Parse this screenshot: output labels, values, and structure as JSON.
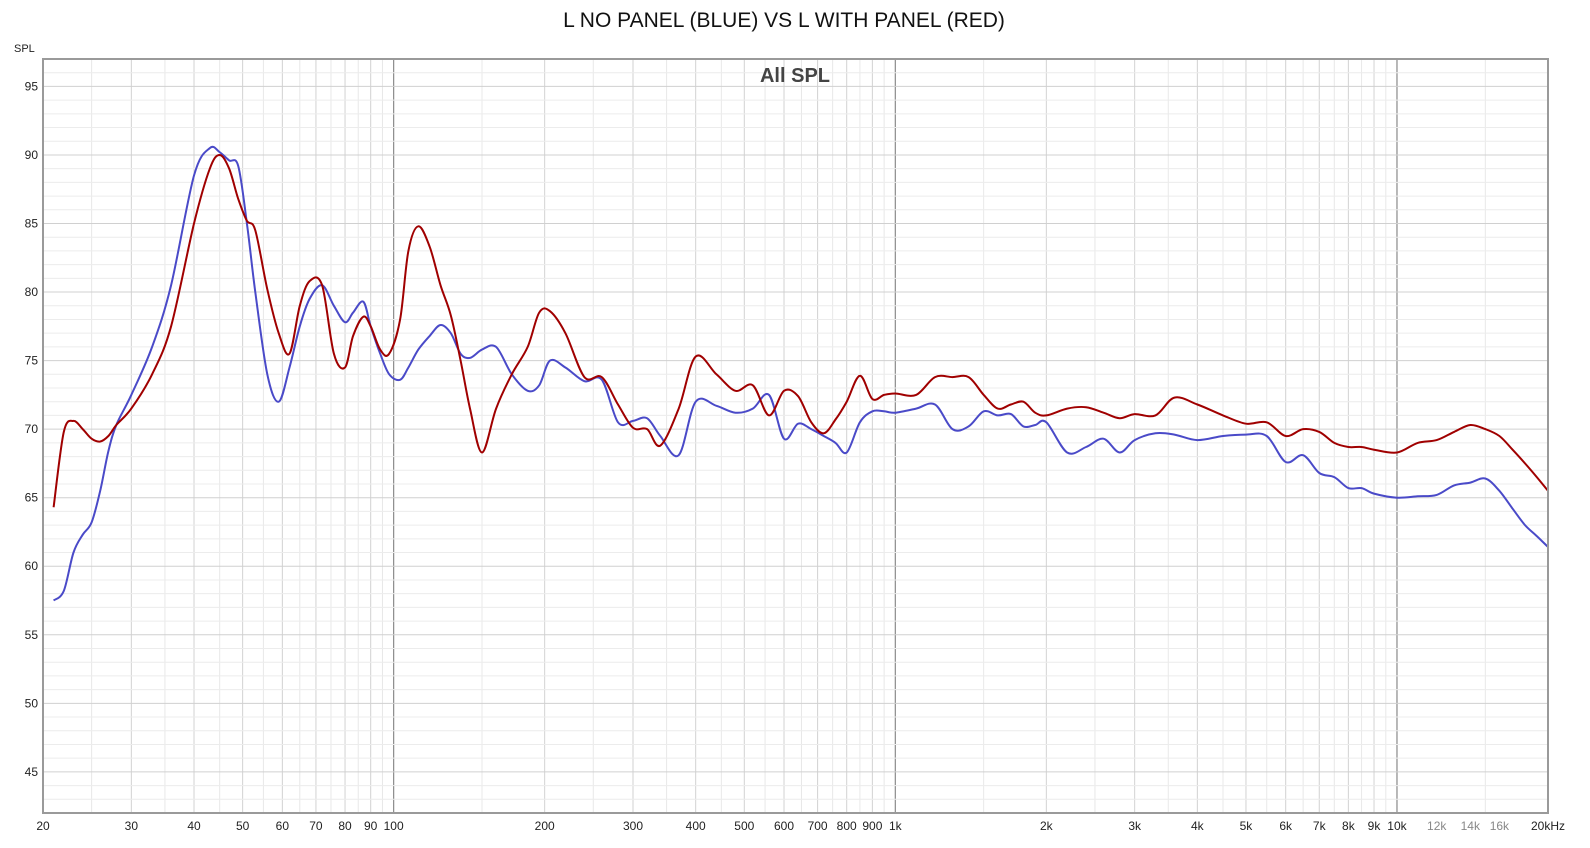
{
  "chart_data": {
    "type": "line",
    "title": "L NO PANEL (BLUE) VS L WITH PANEL (RED)",
    "subtitle": "All SPL",
    "ylabel": "SPL",
    "xlabel": "",
    "xscale": "log",
    "xlim": [
      20,
      20000
    ],
    "ylim": [
      42,
      97
    ],
    "grid": true,
    "x_ticks": [
      {
        "v": 20,
        "label": "20"
      },
      {
        "v": 30,
        "label": "30"
      },
      {
        "v": 40,
        "label": "40"
      },
      {
        "v": 50,
        "label": "50"
      },
      {
        "v": 60,
        "label": "60"
      },
      {
        "v": 70,
        "label": "70"
      },
      {
        "v": 80,
        "label": "80"
      },
      {
        "v": 90,
        "label": "90"
      },
      {
        "v": 100,
        "label": "100"
      },
      {
        "v": 200,
        "label": "200"
      },
      {
        "v": 300,
        "label": "300"
      },
      {
        "v": 400,
        "label": "400"
      },
      {
        "v": 500,
        "label": "500"
      },
      {
        "v": 600,
        "label": "600"
      },
      {
        "v": 700,
        "label": "700"
      },
      {
        "v": 800,
        "label": "800"
      },
      {
        "v": 900,
        "label": "900"
      },
      {
        "v": 1000,
        "label": "1k"
      },
      {
        "v": 2000,
        "label": "2k"
      },
      {
        "v": 3000,
        "label": "3k"
      },
      {
        "v": 4000,
        "label": "4k"
      },
      {
        "v": 5000,
        "label": "5k"
      },
      {
        "v": 6000,
        "label": "6k"
      },
      {
        "v": 7000,
        "label": "7k"
      },
      {
        "v": 8000,
        "label": "8k"
      },
      {
        "v": 9000,
        "label": "9k"
      },
      {
        "v": 10000,
        "label": "10k"
      },
      {
        "v": 12000,
        "label": "12k",
        "light": true
      },
      {
        "v": 14000,
        "label": "14k",
        "light": true
      },
      {
        "v": 16000,
        "label": "16k",
        "light": true
      },
      {
        "v": 20000,
        "label": "20kHz"
      }
    ],
    "y_ticks": [
      45,
      50,
      55,
      60,
      65,
      70,
      75,
      80,
      85,
      90,
      95
    ],
    "colors": {
      "blue": "#4a4ac8",
      "red": "#a00000"
    },
    "series": [
      {
        "color": "#4a4ac8",
        "x": [
          21,
          22,
          23,
          24,
          25,
          26,
          27,
          28,
          30,
          33,
          36,
          40,
          43,
          45,
          47,
          49,
          51,
          53,
          56,
          59,
          62,
          65,
          68,
          72,
          76,
          80,
          83,
          87,
          90,
          94,
          98,
          103,
          107,
          112,
          118,
          124,
          130,
          136,
          142,
          150,
          160,
          172,
          185,
          195,
          205,
          220,
          240,
          260,
          280,
          300,
          320,
          340,
          370,
          400,
          440,
          480,
          520,
          560,
          600,
          640,
          680,
          720,
          760,
          800,
          850,
          900,
          950,
          1000,
          1100,
          1200,
          1300,
          1400,
          1500,
          1600,
          1700,
          1800,
          1900,
          2000,
          2200,
          2400,
          2600,
          2800,
          3000,
          3300,
          3600,
          4000,
          4500,
          5000,
          5500,
          6000,
          6500,
          7000,
          7500,
          8000,
          8500,
          9000,
          10000,
          11000,
          12000,
          13000,
          14000,
          15000,
          16000,
          17000,
          18000,
          19000,
          20000
        ],
        "y": [
          57.5,
          58.2,
          61.0,
          62.3,
          63.2,
          65.5,
          68.4,
          70.3,
          72.5,
          76.0,
          80.5,
          88.5,
          90.5,
          90.2,
          89.6,
          89.2,
          85.0,
          80.0,
          74.0,
          72.0,
          74.5,
          77.5,
          79.5,
          80.5,
          79.0,
          77.8,
          78.5,
          79.3,
          77.5,
          75.5,
          74.0,
          73.6,
          74.5,
          75.8,
          76.8,
          77.6,
          77.0,
          75.5,
          75.2,
          75.8,
          76.0,
          74.0,
          72.8,
          73.2,
          75.0,
          74.5,
          73.5,
          73.6,
          70.5,
          70.6,
          70.8,
          69.5,
          68.1,
          72.0,
          71.7,
          71.2,
          71.5,
          72.5,
          69.3,
          70.4,
          70.0,
          69.5,
          69.0,
          68.3,
          70.5,
          71.3,
          71.3,
          71.2,
          71.5,
          71.8,
          70.0,
          70.2,
          71.3,
          71.0,
          71.1,
          70.2,
          70.3,
          70.5,
          68.3,
          68.7,
          69.3,
          68.3,
          69.2,
          69.7,
          69.6,
          69.2,
          69.5,
          69.6,
          69.5,
          67.6,
          68.1,
          66.8,
          66.5,
          65.7,
          65.7,
          65.3,
          65.0,
          65.1,
          65.2,
          65.9,
          66.1,
          66.4,
          65.5,
          64.2,
          63.0,
          62.2,
          61.4
        ]
      },
      {
        "color": "#a00000",
        "x": [
          21,
          22,
          23,
          24,
          25,
          26,
          27,
          28,
          30,
          33,
          36,
          40,
          43,
          45,
          47,
          49,
          51,
          53,
          56,
          59,
          62,
          65,
          68,
          72,
          76,
          80,
          83,
          87,
          90,
          94,
          98,
          103,
          107,
          112,
          118,
          124,
          130,
          136,
          142,
          150,
          160,
          172,
          185,
          195,
          205,
          220,
          240,
          260,
          280,
          300,
          320,
          340,
          370,
          400,
          440,
          480,
          520,
          560,
          600,
          640,
          680,
          720,
          760,
          800,
          850,
          900,
          950,
          1000,
          1100,
          1200,
          1300,
          1400,
          1500,
          1600,
          1700,
          1800,
          1900,
          2000,
          2200,
          2400,
          2600,
          2800,
          3000,
          3300,
          3600,
          4000,
          4500,
          5000,
          5500,
          6000,
          6500,
          7000,
          7500,
          8000,
          8500,
          9000,
          10000,
          11000,
          12000,
          13000,
          14000,
          15000,
          16000,
          17000,
          18000,
          19000,
          20000
        ],
        "y": [
          64.3,
          69.8,
          70.6,
          70.0,
          69.3,
          69.1,
          69.5,
          70.3,
          71.5,
          74.0,
          77.5,
          85.0,
          89.0,
          90.0,
          89.0,
          86.8,
          85.2,
          84.5,
          80.2,
          77.0,
          75.5,
          79.0,
          80.8,
          80.5,
          75.5,
          74.5,
          76.8,
          78.2,
          77.5,
          75.8,
          75.5,
          78.0,
          83.0,
          84.8,
          83.3,
          80.5,
          78.3,
          75.0,
          71.5,
          68.3,
          71.5,
          74.0,
          76.0,
          78.5,
          78.6,
          77.0,
          73.8,
          73.8,
          71.8,
          70.1,
          70.0,
          68.8,
          71.5,
          75.3,
          74.0,
          72.8,
          73.2,
          71.0,
          72.8,
          72.4,
          70.5,
          69.7,
          70.7,
          72.0,
          73.9,
          72.2,
          72.5,
          72.6,
          72.5,
          73.8,
          73.8,
          73.8,
          72.5,
          71.5,
          71.8,
          72.0,
          71.2,
          71.0,
          71.5,
          71.6,
          71.2,
          70.8,
          71.1,
          71.0,
          72.3,
          71.8,
          71.0,
          70.4,
          70.5,
          69.5,
          70.0,
          69.8,
          69.0,
          68.7,
          68.7,
          68.5,
          68.3,
          69.0,
          69.2,
          69.8,
          70.3,
          70.0,
          69.5,
          68.5,
          67.5,
          66.5,
          65.5
        ]
      }
    ]
  }
}
